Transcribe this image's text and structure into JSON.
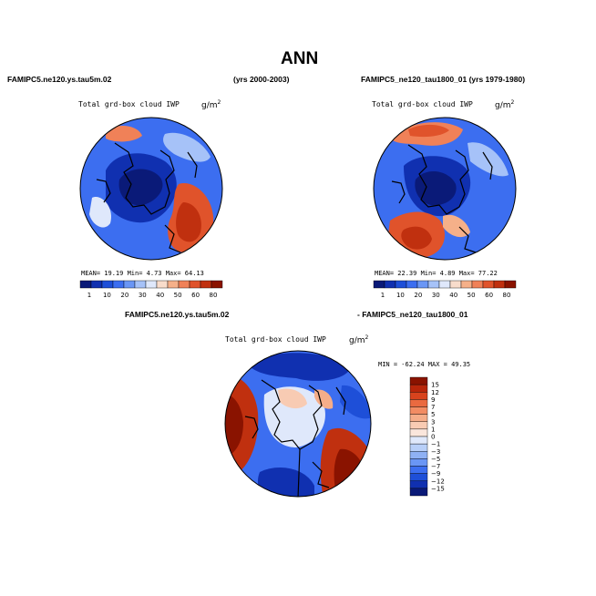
{
  "title": "ANN",
  "panel_left": {
    "case_name": "FAMIPC5.ne120.ys.tau5m.02",
    "years": "(yrs 2000-2003)",
    "field": "Total grd-box cloud IWP",
    "unit": "g/m",
    "unit_exp": "2",
    "stats": "MEAN=   19.19  Min=    4.73  Max=   64.13"
  },
  "panel_right": {
    "case_name": "FAMIPC5_ne120_tau1800_01 (yrs 1979-1980)",
    "field": "Total grd-box cloud IWP",
    "unit": "g/m",
    "unit_exp": "2",
    "stats": "MEAN=   22.39  Min=    4.89  Max=   77.22"
  },
  "panel_diff": {
    "case_a": "FAMIPC5.ne120.ys.tau5m.02",
    "case_b": "- FAMIPC5_ne120_tau1800_01",
    "field": "Total grd-box cloud IWP",
    "unit": "g/m",
    "unit_exp": "2",
    "stats": "MIN = -62.24  MAX =  49.35"
  },
  "colorbar_abs": {
    "labels": [
      "1",
      "10",
      "20",
      "30",
      "40",
      "50",
      "60",
      "80"
    ],
    "colors": [
      "#0a1a78",
      "#1030b0",
      "#1e4fd8",
      "#3c6ef0",
      "#6a96f5",
      "#a6c2f8",
      "#dfe8fb",
      "#f8dccb",
      "#f5b089",
      "#f08158",
      "#e0532b",
      "#c0300f",
      "#8a1300"
    ]
  },
  "colorbar_diff": {
    "labels": [
      "15",
      "12",
      "9",
      "7",
      "5",
      "3",
      "1",
      "0",
      "−1",
      "−3",
      "−5",
      "−7",
      "−9",
      "−12",
      "−15"
    ],
    "colors": [
      "#8a1300",
      "#b8260a",
      "#d8431d",
      "#ea6a40",
      "#f28c63",
      "#f5ad89",
      "#f8cbb3",
      "#fae6dc",
      "#dfe8fb",
      "#b8cff8",
      "#8fb1f4",
      "#6a96f5",
      "#3c6ef0",
      "#1e4fd8",
      "#1030b0",
      "#0a1a78"
    ]
  },
  "colors": {
    "ocean_blue": "#3c6ef0",
    "deep_blue": "#1030b0",
    "red": "#c0300f",
    "coast": "#000000"
  }
}
